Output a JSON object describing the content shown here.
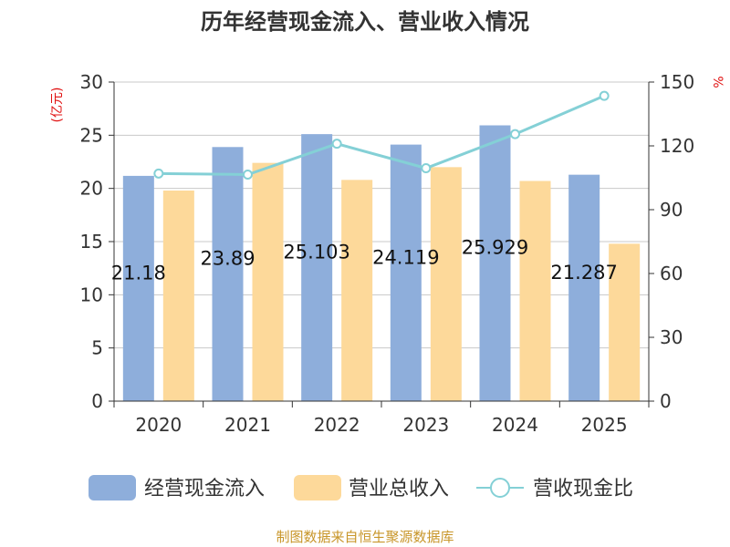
{
  "chart_data": {
    "type": "bar",
    "title": "历年经营现金流入、营业收入情况",
    "categories": [
      "2020",
      "2021",
      "2022",
      "2023",
      "2024",
      "2025"
    ],
    "series": [
      {
        "name": "经营现金流入",
        "kind": "bar",
        "axis": "left",
        "color": "#8eaedb",
        "values": [
          21.18,
          23.89,
          25.103,
          24.119,
          25.929,
          21.287
        ],
        "labels": [
          "21.18",
          "23.89",
          "25.103",
          "24.119",
          "25.929",
          "21.287"
        ]
      },
      {
        "name": "营业总收入",
        "kind": "bar",
        "axis": "left",
        "color": "#fdd99a",
        "values": [
          19.8,
          22.4,
          20.8,
          22.0,
          20.7,
          14.8
        ]
      },
      {
        "name": "营收现金比",
        "kind": "line",
        "axis": "right",
        "color": "#84d0d6",
        "values": [
          107,
          106.5,
          121,
          109.5,
          125.5,
          143.5
        ]
      }
    ],
    "yaxis_left": {
      "unit": "(亿元)",
      "min": 0,
      "max": 30,
      "ticks": [
        0,
        5,
        10,
        15,
        20,
        25,
        30
      ]
    },
    "yaxis_right": {
      "unit": "%",
      "min": 0,
      "max": 150,
      "ticks": [
        0,
        30,
        60,
        90,
        120,
        150
      ]
    },
    "grid": true,
    "legend_position": "bottom"
  },
  "source": "制图数据来自恒生聚源数据库"
}
